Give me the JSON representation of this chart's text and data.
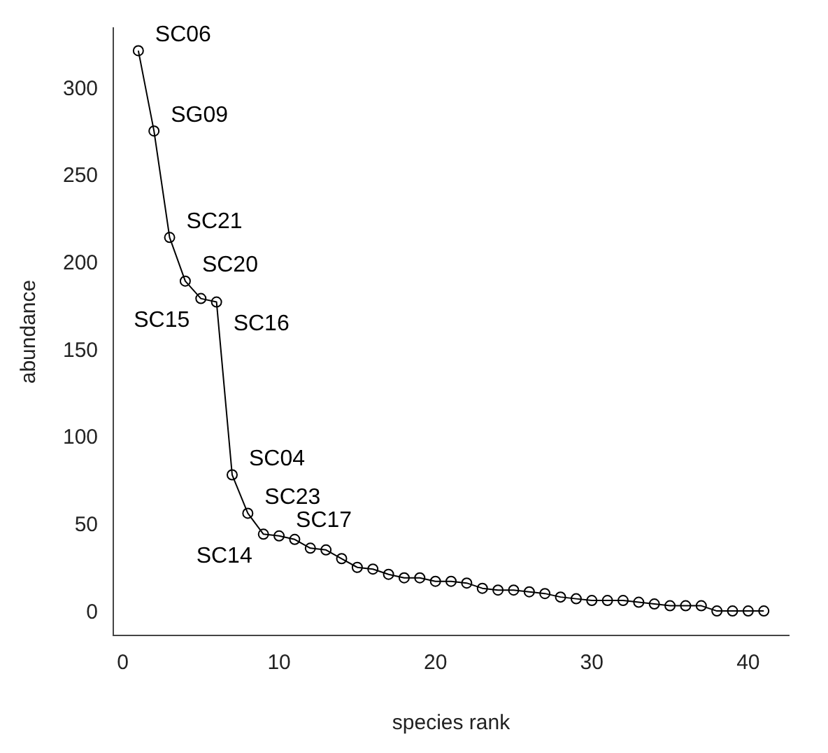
{
  "chart_data": {
    "type": "line",
    "xlabel": "species rank",
    "ylabel": "abundance",
    "x": [
      1,
      2,
      3,
      4,
      5,
      6,
      7,
      8,
      9,
      10,
      11,
      12,
      13,
      14,
      15,
      16,
      17,
      18,
      19,
      20,
      21,
      22,
      23,
      24,
      25,
      26,
      27,
      28,
      29,
      30,
      31,
      32,
      33,
      34,
      35,
      36,
      37,
      38,
      39,
      40,
      41
    ],
    "series": [
      {
        "color": "#000000",
        "values": [
          322,
          276,
          215,
          190,
          180,
          178,
          79,
          57,
          45,
          44,
          42,
          37,
          36,
          31,
          26,
          25,
          22,
          20,
          20,
          18,
          18,
          17,
          14,
          13,
          13,
          12,
          11,
          9,
          8,
          7,
          7,
          7,
          6,
          5,
          4,
          4,
          4,
          1,
          1,
          1,
          1
        ]
      }
    ],
    "xlim": [
      -0.6,
      42.6
    ],
    "xticks": [
      0,
      10,
      20,
      30,
      40
    ],
    "ylim": [
      -13,
      335
    ],
    "yticks": [
      0,
      50,
      100,
      150,
      200,
      250,
      300
    ],
    "marker": "circle",
    "line_style": "solid",
    "grid": false,
    "legend": false,
    "annotations": [
      {
        "text": "SC06",
        "x": 1,
        "y": 322
      },
      {
        "text": "SG09",
        "x": 2,
        "y": 276
      },
      {
        "text": "SC21",
        "x": 3,
        "y": 215
      },
      {
        "text": "SC20",
        "x": 4,
        "y": 190
      },
      {
        "text": "SC15",
        "x": 5,
        "y": 180
      },
      {
        "text": "SC16",
        "x": 6,
        "y": 178
      },
      {
        "text": "SC04",
        "x": 7,
        "y": 79
      },
      {
        "text": "SC23",
        "x": 8,
        "y": 57
      },
      {
        "text": "SC14",
        "x": 9,
        "y": 45
      },
      {
        "text": "SC17",
        "x": 10,
        "y": 44
      }
    ]
  }
}
